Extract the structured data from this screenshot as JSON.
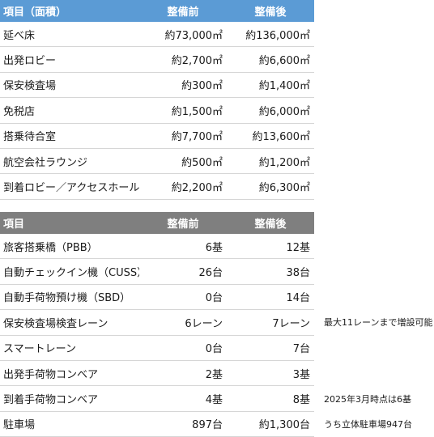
{
  "area_table": {
    "headers": {
      "item": "項目（面積）",
      "before": "整備前",
      "after": "整備後"
    },
    "rows": [
      {
        "item": "延べ床",
        "before": "約73,000㎡",
        "after": "約136,000㎡"
      },
      {
        "item": "出発ロビー",
        "before": "約2,700㎡",
        "after": "約6,600㎡"
      },
      {
        "item": "保安検査場",
        "before": "約300㎡",
        "after": "約1,400㎡"
      },
      {
        "item": "免税店",
        "before": "約1,500㎡",
        "after": "約6,000㎡"
      },
      {
        "item": "搭乗待合室",
        "before": "約7,700㎡",
        "after": "約13,600㎡"
      },
      {
        "item": "航空会社ラウンジ",
        "before": "約500㎡",
        "after": "約1,200㎡"
      },
      {
        "item": "到着ロビー／アクセスホール",
        "before": "約2,200㎡",
        "after": "約6,300㎡"
      }
    ]
  },
  "facility_table": {
    "headers": {
      "item": "項目",
      "before": "整備前",
      "after": "整備後"
    },
    "rows": [
      {
        "item": "旅客搭乗橋（PBB）",
        "before": "6基",
        "after": "12基",
        "note": ""
      },
      {
        "item": "自動チェックイン機（CUSS）",
        "before": "26台",
        "after": "38台",
        "note": ""
      },
      {
        "item": "自動手荷物預け機（SBD）",
        "before": "0台",
        "after": "14台",
        "note": ""
      },
      {
        "item": "保安検査場検査レーン",
        "before": "6レーン",
        "after": "7レーン",
        "note": "最大11レーンまで増設可能"
      },
      {
        "item": "スマートレーン",
        "before": "0台",
        "after": "7台",
        "note": ""
      },
      {
        "item": "出発手荷物コンベア",
        "before": "2基",
        "after": "3基",
        "note": ""
      },
      {
        "item": "到着手荷物コンベア",
        "before": "4基",
        "after": "8基",
        "note": "2025年3月時点は6基"
      },
      {
        "item": "駐車場",
        "before": "897台",
        "after": "約1,300台",
        "note": "うち立体駐車場947台"
      }
    ]
  },
  "colors": {
    "area_header": "#5b9bd5",
    "facility_header": "#7f7f7f"
  }
}
